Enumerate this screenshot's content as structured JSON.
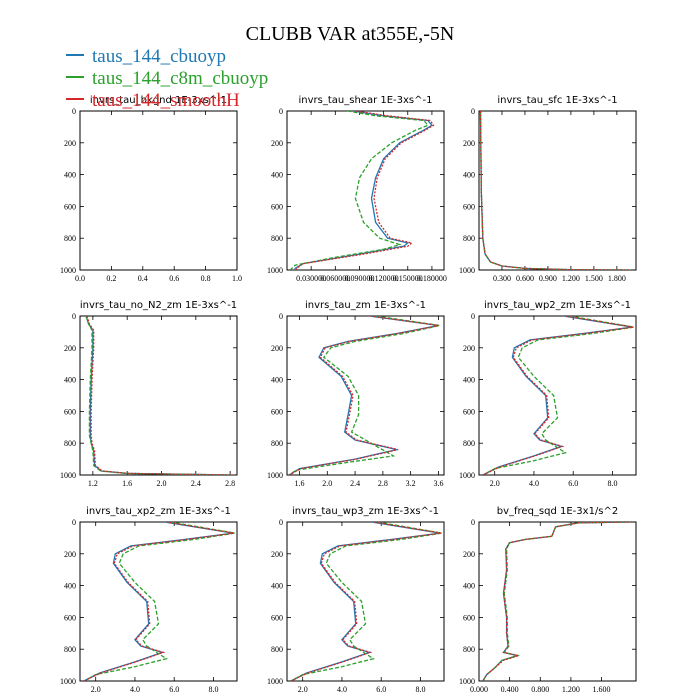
{
  "figure": {
    "title": "CLUBB VAR at355E,-5N",
    "legend": [
      {
        "label": "taus_144_cbuoyp",
        "color": "#1f77b4"
      },
      {
        "label": "taus_144_c8m_cbuoyp",
        "color": "#2ca02c"
      },
      {
        "label": "taus_144_smoothH",
        "color": "#d62728"
      }
    ]
  },
  "chart_data": [
    {
      "type": "line",
      "title": "invrs_tau_bkgnd  1E-3xs^-1",
      "xlim": [
        0,
        1
      ],
      "ylim": [
        1000,
        0
      ],
      "xticks": [
        0,
        0.2,
        0.4,
        0.6,
        0.8,
        1.0
      ],
      "xtick_labels": [
        "0.0",
        "0.2",
        "0.4",
        "0.6",
        "0.8",
        "1.0"
      ],
      "yticks": [
        0,
        200,
        400,
        600,
        800,
        1000
      ],
      "series": []
    },
    {
      "type": "line",
      "title": "invrs_tau_shear  1E-3xs^-1",
      "xlim": [
        0.0,
        0.195
      ],
      "ylim": [
        1000,
        0
      ],
      "xticks": [
        0.03,
        0.06,
        0.09,
        0.12,
        0.15,
        0.18
      ],
      "xtick_labels": [
        "0.030000",
        "0.060000",
        "0.090000",
        "0.120000",
        "0.150000",
        "0.180000"
      ],
      "yticks": [
        0,
        200,
        400,
        600,
        800,
        1000
      ],
      "series": [
        {
          "name": "taus_144_cbuoyp",
          "x": [
            0.082,
            0.12,
            0.175,
            0.18,
            0.17,
            0.14,
            0.12,
            0.11,
            0.105,
            0.11,
            0.125,
            0.15,
            0.145,
            0.09,
            0.02,
            0.01,
            0.01
          ],
          "y": [
            0,
            30,
            60,
            90,
            120,
            200,
            300,
            420,
            550,
            700,
            800,
            830,
            850,
            900,
            960,
            990,
            1000
          ]
        },
        {
          "name": "taus_144_c8m_cbuoyp",
          "x": [
            0.075,
            0.11,
            0.17,
            0.175,
            0.16,
            0.13,
            0.105,
            0.09,
            0.085,
            0.095,
            0.115,
            0.14,
            0.12,
            0.06,
            0.01,
            0.005,
            0.005
          ],
          "y": [
            0,
            30,
            60,
            90,
            120,
            200,
            300,
            420,
            550,
            700,
            800,
            840,
            870,
            920,
            970,
            995,
            1000
          ]
        },
        {
          "name": "taus_144_smoothH",
          "x": [
            0.085,
            0.125,
            0.178,
            0.182,
            0.172,
            0.142,
            0.122,
            0.112,
            0.108,
            0.114,
            0.128,
            0.155,
            0.15,
            0.095,
            0.02,
            0.012,
            0.012
          ],
          "y": [
            0,
            30,
            60,
            90,
            120,
            200,
            300,
            420,
            550,
            700,
            800,
            830,
            850,
            900,
            960,
            990,
            1000
          ]
        }
      ]
    },
    {
      "type": "line",
      "title": "invrs_tau_sfc  1E-3xs^-1",
      "xlim": [
        0.0,
        2.05
      ],
      "ylim": [
        1000,
        0
      ],
      "xticks": [
        0.3,
        0.6,
        0.9,
        1.2,
        1.5,
        1.8
      ],
      "xtick_labels": [
        "0.300",
        "0.600",
        "0.900",
        "1.200",
        "1.500",
        "1.800"
      ],
      "yticks": [
        0,
        200,
        400,
        600,
        800,
        1000
      ],
      "series": [
        {
          "name": "taus_144_cbuoyp",
          "x": [
            0.02,
            0.03,
            0.05,
            0.08,
            0.15,
            0.3,
            0.6,
            1.2,
            2.0
          ],
          "y": [
            0,
            500,
            800,
            900,
            950,
            975,
            990,
            998,
            1000
          ]
        },
        {
          "name": "taus_144_c8m_cbuoyp",
          "x": [
            0.02,
            0.03,
            0.05,
            0.08,
            0.15,
            0.3,
            0.6,
            1.2,
            2.0
          ],
          "y": [
            0,
            500,
            800,
            900,
            950,
            975,
            990,
            998,
            1000
          ]
        },
        {
          "name": "taus_144_smoothH",
          "x": [
            0.02,
            0.03,
            0.05,
            0.08,
            0.15,
            0.3,
            0.6,
            1.2,
            2.0
          ],
          "y": [
            0,
            500,
            800,
            900,
            950,
            975,
            990,
            998,
            1000
          ]
        }
      ]
    },
    {
      "type": "line",
      "title": "invrs_tau_no_N2_zm  1E-3xs^-1",
      "xlim": [
        1.05,
        2.88
      ],
      "ylim": [
        1000,
        0
      ],
      "xticks": [
        1.2,
        1.6,
        2.0,
        2.4,
        2.8
      ],
      "xtick_labels": [
        "1.2",
        "1.6",
        "2.0",
        "2.4",
        "2.8"
      ],
      "yticks": [
        0,
        200,
        400,
        600,
        800,
        1000
      ],
      "series": [
        {
          "name": "taus_144_cbuoyp",
          "x": [
            1.12,
            1.15,
            1.2,
            1.2,
            1.18,
            1.17,
            1.17,
            1.18,
            1.21,
            1.22,
            1.3,
            1.6,
            2.2,
            2.85
          ],
          "y": [
            0,
            50,
            90,
            200,
            400,
            600,
            750,
            800,
            850,
            940,
            975,
            990,
            995,
            1000
          ]
        },
        {
          "name": "taus_144_c8m_cbuoyp",
          "x": [
            1.12,
            1.15,
            1.19,
            1.19,
            1.17,
            1.16,
            1.16,
            1.18,
            1.2,
            1.21,
            1.29,
            1.58,
            2.2,
            2.85
          ],
          "y": [
            0,
            50,
            90,
            200,
            400,
            600,
            750,
            800,
            850,
            940,
            975,
            990,
            995,
            1000
          ]
        },
        {
          "name": "taus_144_smoothH",
          "x": [
            1.13,
            1.16,
            1.21,
            1.21,
            1.19,
            1.18,
            1.18,
            1.19,
            1.22,
            1.23,
            1.31,
            1.62,
            2.2,
            2.85
          ],
          "y": [
            0,
            50,
            90,
            200,
            400,
            600,
            750,
            800,
            850,
            940,
            975,
            990,
            995,
            1000
          ]
        }
      ]
    },
    {
      "type": "line",
      "title": "invrs_tau_zm  1E-3xs^-1",
      "xlim": [
        1.42,
        3.68
      ],
      "ylim": [
        1000,
        0
      ],
      "xticks": [
        1.6,
        2.0,
        2.4,
        2.8,
        3.2,
        3.6
      ],
      "xtick_labels": [
        "1.6",
        "2.0",
        "2.4",
        "2.8",
        "3.2",
        "3.6"
      ],
      "yticks": [
        0,
        200,
        400,
        600,
        800,
        1000
      ],
      "series": [
        {
          "name": "taus_144_cbuoyp",
          "x": [
            2.6,
            3.6,
            3.0,
            2.3,
            1.95,
            1.88,
            2.2,
            2.35,
            2.3,
            2.25,
            2.4,
            3.0,
            2.4,
            1.6,
            1.45
          ],
          "y": [
            0,
            60,
            110,
            160,
            200,
            260,
            380,
            500,
            620,
            730,
            780,
            840,
            900,
            960,
            1000
          ]
        },
        {
          "name": "taus_144_c8m_cbuoyp",
          "x": [
            2.7,
            3.62,
            3.1,
            2.4,
            2.05,
            1.95,
            2.3,
            2.45,
            2.45,
            2.35,
            2.55,
            2.95,
            2.3,
            1.55,
            1.45
          ],
          "y": [
            0,
            60,
            110,
            160,
            200,
            260,
            380,
            500,
            620,
            730,
            780,
            880,
            920,
            970,
            1000
          ]
        },
        {
          "name": "taus_144_smoothH",
          "x": [
            2.62,
            3.61,
            3.02,
            2.32,
            1.97,
            1.9,
            2.22,
            2.37,
            2.32,
            2.27,
            2.42,
            3.02,
            2.42,
            1.62,
            1.45
          ],
          "y": [
            0,
            60,
            110,
            160,
            200,
            260,
            380,
            500,
            620,
            730,
            780,
            840,
            900,
            960,
            1000
          ]
        }
      ]
    },
    {
      "type": "line",
      "title": "invrs_tau_wp2_zm  1E-3xs^-1",
      "xlim": [
        1.2,
        9.2
      ],
      "ylim": [
        1000,
        0
      ],
      "xticks": [
        2.0,
        4.0,
        6.0,
        8.0
      ],
      "xtick_labels": [
        "2.0",
        "4.0",
        "6.0",
        "8.0"
      ],
      "yticks": [
        0,
        200,
        400,
        600,
        800,
        1000
      ],
      "series": [
        {
          "name": "taus_144_cbuoyp",
          "x": [
            5.5,
            9.0,
            6.5,
            3.8,
            3.0,
            2.9,
            3.6,
            4.6,
            4.7,
            4.0,
            4.3,
            5.4,
            4.0,
            2.2,
            1.4
          ],
          "y": [
            0,
            70,
            110,
            150,
            200,
            260,
            380,
            500,
            640,
            740,
            780,
            820,
            880,
            950,
            1000
          ]
        },
        {
          "name": "taus_144_c8m_cbuoyp",
          "x": [
            5.8,
            9.1,
            7.0,
            4.2,
            3.4,
            3.2,
            4.0,
            5.0,
            5.2,
            4.4,
            4.6,
            5.6,
            4.0,
            2.0,
            1.4
          ],
          "y": [
            0,
            70,
            110,
            150,
            200,
            260,
            380,
            500,
            640,
            740,
            780,
            860,
            910,
            960,
            1000
          ]
        },
        {
          "name": "taus_144_smoothH",
          "x": [
            5.6,
            9.05,
            6.6,
            3.9,
            3.1,
            2.95,
            3.65,
            4.65,
            4.75,
            4.05,
            4.35,
            5.45,
            4.05,
            2.25,
            1.4
          ],
          "y": [
            0,
            70,
            110,
            150,
            200,
            260,
            380,
            500,
            640,
            740,
            780,
            820,
            880,
            950,
            1000
          ]
        }
      ]
    },
    {
      "type": "line",
      "title": "invrs_tau_xp2_zm  1E-3xs^-1",
      "xlim": [
        1.2,
        9.2
      ],
      "ylim": [
        1000,
        0
      ],
      "xticks": [
        2.0,
        4.0,
        6.0,
        8.0
      ],
      "xtick_labels": [
        "2.0",
        "4.0",
        "6.0",
        "8.0"
      ],
      "yticks": [
        0,
        200,
        400,
        600,
        800,
        1000
      ],
      "series": [
        {
          "name": "taus_144_cbuoyp",
          "x": [
            5.5,
            9.0,
            6.5,
            3.8,
            3.0,
            2.9,
            3.6,
            4.6,
            4.7,
            4.0,
            4.3,
            5.4,
            4.0,
            2.2,
            1.4
          ],
          "y": [
            0,
            70,
            110,
            150,
            200,
            260,
            380,
            500,
            640,
            740,
            780,
            820,
            880,
            950,
            1000
          ]
        },
        {
          "name": "taus_144_c8m_cbuoyp",
          "x": [
            5.8,
            9.1,
            7.0,
            4.2,
            3.4,
            3.2,
            4.0,
            5.0,
            5.2,
            4.4,
            4.6,
            5.6,
            4.0,
            2.0,
            1.4
          ],
          "y": [
            0,
            70,
            110,
            150,
            200,
            260,
            380,
            500,
            640,
            740,
            780,
            860,
            910,
            960,
            1000
          ]
        },
        {
          "name": "taus_144_smoothH",
          "x": [
            5.6,
            9.05,
            6.6,
            3.9,
            3.1,
            2.95,
            3.65,
            4.65,
            4.75,
            4.05,
            4.35,
            5.45,
            4.05,
            2.25,
            1.4
          ],
          "y": [
            0,
            70,
            110,
            150,
            200,
            260,
            380,
            500,
            640,
            740,
            780,
            820,
            880,
            950,
            1000
          ]
        }
      ]
    },
    {
      "type": "line",
      "title": "invrs_tau_wp3_zm  1E-3xs^-1",
      "xlim": [
        1.2,
        9.2
      ],
      "ylim": [
        1000,
        0
      ],
      "xticks": [
        2.0,
        4.0,
        6.0,
        8.0
      ],
      "xtick_labels": [
        "2.0",
        "4.0",
        "6.0",
        "8.0"
      ],
      "yticks": [
        0,
        200,
        400,
        600,
        800,
        1000
      ],
      "series": [
        {
          "name": "taus_144_cbuoyp",
          "x": [
            5.5,
            9.0,
            6.5,
            3.8,
            3.0,
            2.9,
            3.6,
            4.6,
            4.7,
            4.0,
            4.3,
            5.4,
            4.0,
            2.2,
            1.4
          ],
          "y": [
            0,
            70,
            110,
            150,
            200,
            260,
            380,
            500,
            640,
            740,
            780,
            820,
            880,
            950,
            1000
          ]
        },
        {
          "name": "taus_144_c8m_cbuoyp",
          "x": [
            5.8,
            9.1,
            7.0,
            4.2,
            3.4,
            3.2,
            4.0,
            5.0,
            5.2,
            4.4,
            4.6,
            5.6,
            4.0,
            2.0,
            1.4
          ],
          "y": [
            0,
            70,
            110,
            150,
            200,
            260,
            380,
            500,
            640,
            740,
            780,
            860,
            910,
            960,
            1000
          ]
        },
        {
          "name": "taus_144_smoothH",
          "x": [
            5.6,
            9.05,
            6.6,
            3.9,
            3.1,
            2.95,
            3.65,
            4.65,
            4.75,
            4.05,
            4.35,
            5.45,
            4.05,
            2.25,
            1.4
          ],
          "y": [
            0,
            70,
            110,
            150,
            200,
            260,
            380,
            500,
            640,
            740,
            780,
            820,
            880,
            950,
            1000
          ]
        }
      ]
    },
    {
      "type": "line",
      "title": "bv_freq_sqd  1E-3x1/s^2",
      "xlim": [
        0.0,
        2.05
      ],
      "ylim": [
        1000,
        0
      ],
      "xticks": [
        0.0,
        0.4,
        0.8,
        1.2,
        1.6
      ],
      "xtick_labels": [
        "0.000",
        "0.400",
        "0.800",
        "1.200",
        "1.600"
      ],
      "yticks": [
        0,
        200,
        400,
        600,
        800,
        1000
      ],
      "series": [
        {
          "name": "taus_144_cbuoyp",
          "x": [
            2.0,
            1.3,
            1.0,
            0.95,
            0.6,
            0.4,
            0.35,
            0.36,
            0.32,
            0.36,
            0.36,
            0.38,
            0.32,
            0.5,
            0.3,
            0.2,
            0.1,
            0.05
          ],
          "y": [
            0,
            5,
            30,
            90,
            110,
            130,
            170,
            300,
            450,
            600,
            700,
            780,
            820,
            840,
            870,
            920,
            960,
            1000
          ]
        },
        {
          "name": "taus_144_c8m_cbuoyp",
          "x": [
            2.0,
            1.3,
            1.0,
            0.95,
            0.6,
            0.4,
            0.36,
            0.37,
            0.33,
            0.37,
            0.37,
            0.39,
            0.33,
            0.5,
            0.3,
            0.2,
            0.1,
            0.05
          ],
          "y": [
            0,
            5,
            30,
            90,
            110,
            130,
            170,
            300,
            450,
            600,
            700,
            780,
            820,
            840,
            870,
            920,
            960,
            1000
          ]
        },
        {
          "name": "taus_144_smoothH",
          "x": [
            2.0,
            1.3,
            1.0,
            0.95,
            0.6,
            0.4,
            0.35,
            0.36,
            0.32,
            0.36,
            0.36,
            0.38,
            0.32,
            0.52,
            0.32,
            0.2,
            0.1,
            0.05
          ],
          "y": [
            0,
            5,
            30,
            90,
            110,
            130,
            170,
            300,
            450,
            600,
            700,
            780,
            820,
            840,
            870,
            920,
            960,
            1000
          ]
        }
      ]
    }
  ]
}
